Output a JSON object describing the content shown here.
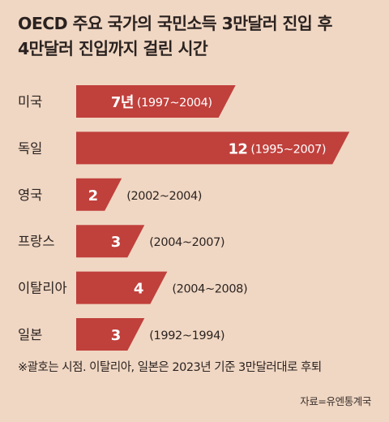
{
  "title_line1": "OECD 주요 국가의 국민소득 3만달러 진입 후",
  "title_line2": "4만달러 진입까지 걸린 시간",
  "colors": {
    "background": "#f0d7c3",
    "bar": "#c0403c",
    "label_text": "#ffffff",
    "text": "#2b2321"
  },
  "chart_data": {
    "type": "bar",
    "orientation": "horizontal",
    "title": "OECD 주요 국가의 국민소득 3만달러 진입 후 4만달러 진입까지 걸린 시간",
    "categories": [
      "미국",
      "독일",
      "영국",
      "프랑스",
      "이탈리아",
      "일본"
    ],
    "values": [
      7,
      12,
      2,
      3,
      4,
      3
    ],
    "value_labels": [
      "7년",
      "12",
      "2",
      "3",
      "4",
      "3"
    ],
    "period_labels": [
      "(1997~2004)",
      "(1995~2007)",
      "(2002~2004)",
      "(2004~2007)",
      "(2004~2008)",
      "(1992~1994)"
    ],
    "unit": "년",
    "xlim": [
      0,
      12
    ],
    "grid": false,
    "legend": "none"
  },
  "footnote": "※괄호는 시점. 이탈리아, 일본은 2023년 기준 3만달러대로 후퇴",
  "source": "자료=유엔통계국"
}
